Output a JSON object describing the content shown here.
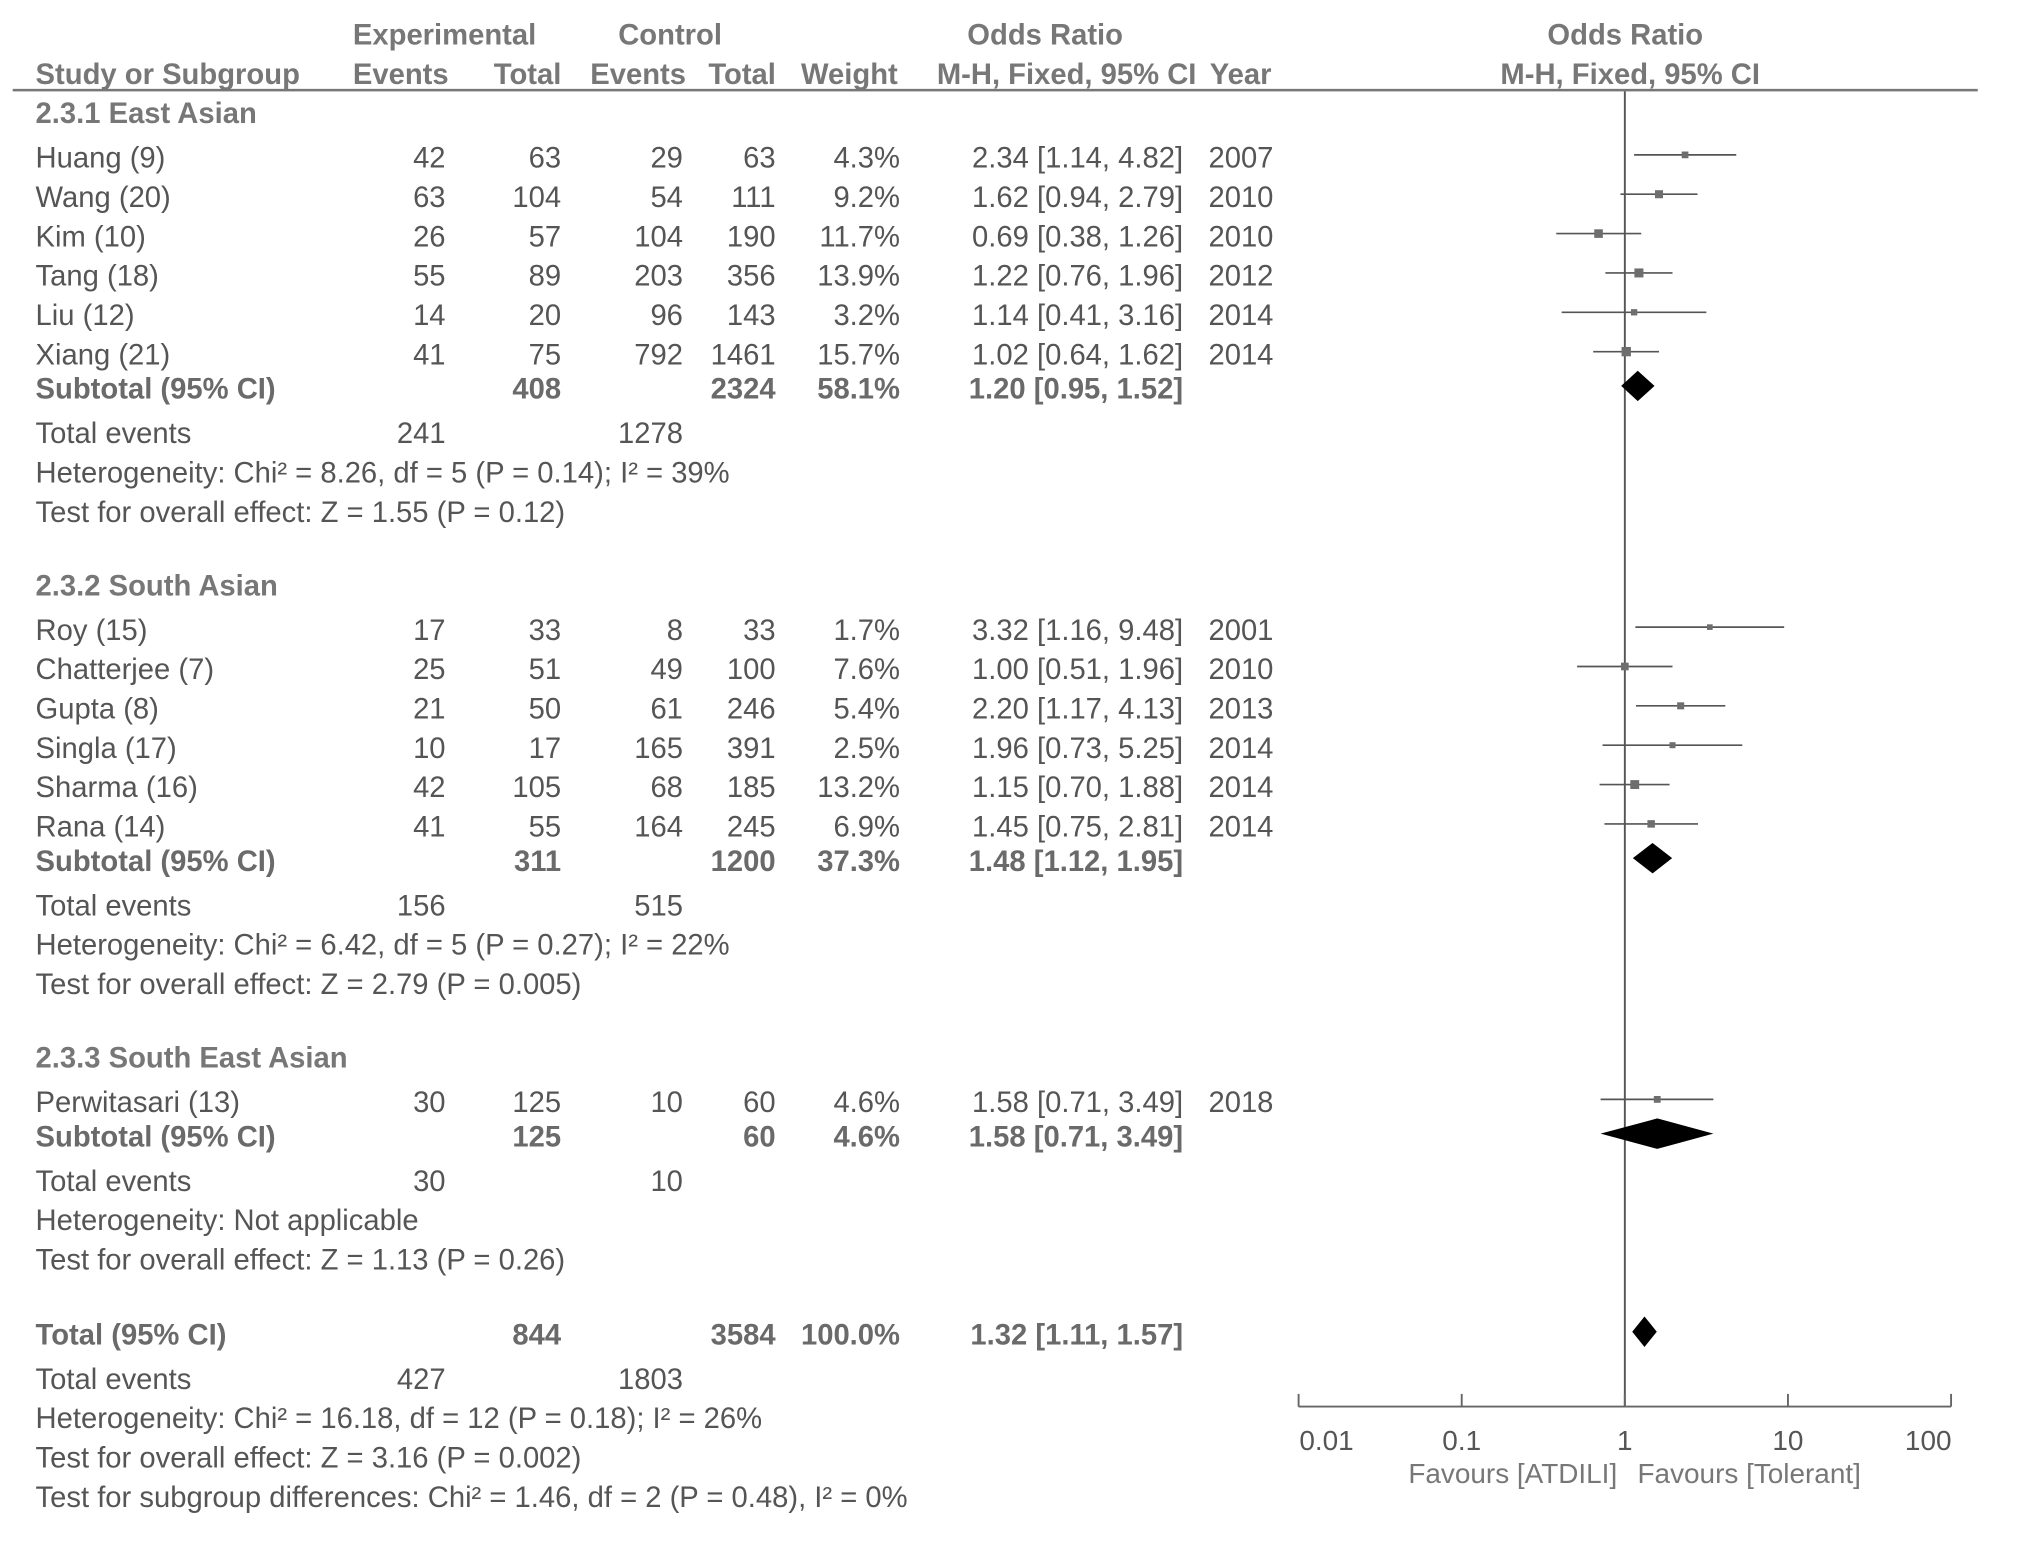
{
  "header": {
    "study": "Study or Subgroup",
    "experimental": "Experimental",
    "control": "Control",
    "events": "Events",
    "total": "Total",
    "weight": "Weight",
    "or_title": "Odds Ratio",
    "or_method": "M-H, Fixed, 95% CI",
    "year": "Year",
    "plot_title": "Odds Ratio",
    "plot_method": "M-H, Fixed, 95% CI"
  },
  "groups": [
    {
      "title": "2.3.1 East Asian",
      "studies": [
        {
          "name": "Huang (9)",
          "e_events": "42",
          "e_total": "63",
          "c_events": "29",
          "c_total": "63",
          "weight": "4.3%",
          "ci": "2.34 [1.14, 4.82]",
          "year": "2007"
        },
        {
          "name": "Wang (20)",
          "e_events": "63",
          "e_total": "104",
          "c_events": "54",
          "c_total": "111",
          "weight": "9.2%",
          "ci": "1.62 [0.94, 2.79]",
          "year": "2010"
        },
        {
          "name": "Kim (10)",
          "e_events": "26",
          "e_total": "57",
          "c_events": "104",
          "c_total": "190",
          "weight": "11.7%",
          "ci": "0.69 [0.38, 1.26]",
          "year": "2010"
        },
        {
          "name": "Tang (18)",
          "e_events": "55",
          "e_total": "89",
          "c_events": "203",
          "c_total": "356",
          "weight": "13.9%",
          "ci": "1.22 [0.76, 1.96]",
          "year": "2012"
        },
        {
          "name": "Liu (12)",
          "e_events": "14",
          "e_total": "20",
          "c_events": "96",
          "c_total": "143",
          "weight": "3.2%",
          "ci": "1.14 [0.41, 3.16]",
          "year": "2014"
        },
        {
          "name": "Xiang (21)",
          "e_events": "41",
          "e_total": "75",
          "c_events": "792",
          "c_total": "1461",
          "weight": "15.7%",
          "ci": "1.02 [0.64, 1.62]",
          "year": "2014"
        }
      ],
      "subtotal": {
        "label": "Subtotal (95% CI)",
        "e_total": "408",
        "c_total": "2324",
        "weight": "58.1%",
        "ci": "1.20 [0.95, 1.52]"
      },
      "events": {
        "label": "Total events",
        "e": "241",
        "c": "1278"
      },
      "heterogeneity": "Heterogeneity: Chi² = 8.26, df = 5 (P = 0.14); I² = 39%",
      "overall": "Test for overall effect: Z = 1.55 (P = 0.12)"
    },
    {
      "title": "2.3.2 South Asian",
      "studies": [
        {
          "name": "Roy (15)",
          "e_events": "17",
          "e_total": "33",
          "c_events": "8",
          "c_total": "33",
          "weight": "1.7%",
          "ci": "3.32 [1.16, 9.48]",
          "year": "2001"
        },
        {
          "name": "Chatterjee (7)",
          "e_events": "25",
          "e_total": "51",
          "c_events": "49",
          "c_total": "100",
          "weight": "7.6%",
          "ci": "1.00 [0.51, 1.96]",
          "year": "2010"
        },
        {
          "name": "Gupta (8)",
          "e_events": "21",
          "e_total": "50",
          "c_events": "61",
          "c_total": "246",
          "weight": "5.4%",
          "ci": "2.20 [1.17, 4.13]",
          "year": "2013"
        },
        {
          "name": "Singla (17)",
          "e_events": "10",
          "e_total": "17",
          "c_events": "165",
          "c_total": "391",
          "weight": "2.5%",
          "ci": "1.96 [0.73, 5.25]",
          "year": "2014"
        },
        {
          "name": "Sharma (16)",
          "e_events": "42",
          "e_total": "105",
          "c_events": "68",
          "c_total": "185",
          "weight": "13.2%",
          "ci": "1.15 [0.70, 1.88]",
          "year": "2014"
        },
        {
          "name": "Rana (14)",
          "e_events": "41",
          "e_total": "55",
          "c_events": "164",
          "c_total": "245",
          "weight": "6.9%",
          "ci": "1.45 [0.75, 2.81]",
          "year": "2014"
        }
      ],
      "subtotal": {
        "label": "Subtotal (95% CI)",
        "e_total": "311",
        "c_total": "1200",
        "weight": "37.3%",
        "ci": "1.48 [1.12, 1.95]"
      },
      "events": {
        "label": "Total events",
        "e": "156",
        "c": "515"
      },
      "heterogeneity": "Heterogeneity: Chi² = 6.42, df = 5 (P = 0.27); I² = 22%",
      "overall": "Test for overall effect: Z = 2.79 (P = 0.005)"
    },
    {
      "title": "2.3.3 South East Asian",
      "studies": [
        {
          "name": "Perwitasari (13)",
          "e_events": "30",
          "e_total": "125",
          "c_events": "10",
          "c_total": "60",
          "weight": "4.6%",
          "ci": "1.58 [0.71, 3.49]",
          "year": "2018"
        }
      ],
      "subtotal": {
        "label": "Subtotal (95% CI)",
        "e_total": "125",
        "c_total": "60",
        "weight": "4.6%",
        "ci": "1.58 [0.71, 3.49]"
      },
      "events": {
        "label": "Total events",
        "e": "30",
        "c": "10"
      },
      "heterogeneity": "Heterogeneity: Not applicable",
      "overall": "Test for overall effect: Z = 1.13 (P = 0.26)"
    }
  ],
  "total": {
    "label": "Total (95% CI)",
    "e_total": "844",
    "c_total": "3584",
    "weight": "100.0%",
    "ci": "1.32 [1.11, 1.57]",
    "events_label": "Total events",
    "e_events": "427",
    "c_events": "1803",
    "heterogeneity": "Heterogeneity: Chi² = 16.18, df = 12 (P = 0.18); I² = 26%",
    "overall": "Test for overall effect: Z = 3.16 (P = 0.002)",
    "subgroup": "Test for subgroup differences: Chi² = 1.46, df = 2 (P = 0.48), I² = 0%"
  },
  "chart_data": {
    "type": "forest",
    "x_scale": "log",
    "xlim": [
      0.01,
      100
    ],
    "ticks": [
      "0.01",
      "0.1",
      "1",
      "10",
      "100"
    ],
    "tick_values": [
      0.01,
      0.1,
      1,
      10,
      100
    ],
    "reference_line": 1,
    "favours_left": "Favours [ATDILI]",
    "favours_right": "Favours [Tolerant]",
    "studies": [
      {
        "name": "Huang (9)",
        "or": 2.34,
        "lo": 1.14,
        "hi": 4.82,
        "weight": 4.3
      },
      {
        "name": "Wang (20)",
        "or": 1.62,
        "lo": 0.94,
        "hi": 2.79,
        "weight": 9.2
      },
      {
        "name": "Kim (10)",
        "or": 0.69,
        "lo": 0.38,
        "hi": 1.26,
        "weight": 11.7
      },
      {
        "name": "Tang (18)",
        "or": 1.22,
        "lo": 0.76,
        "hi": 1.96,
        "weight": 13.9
      },
      {
        "name": "Liu (12)",
        "or": 1.14,
        "lo": 0.41,
        "hi": 3.16,
        "weight": 3.2
      },
      {
        "name": "Xiang (21)",
        "or": 1.02,
        "lo": 0.64,
        "hi": 1.62,
        "weight": 15.7
      },
      {
        "name": "Roy (15)",
        "or": 3.32,
        "lo": 1.16,
        "hi": 9.48,
        "weight": 1.7
      },
      {
        "name": "Chatterjee (7)",
        "or": 1.0,
        "lo": 0.51,
        "hi": 1.96,
        "weight": 7.6
      },
      {
        "name": "Gupta (8)",
        "or": 2.2,
        "lo": 1.17,
        "hi": 4.13,
        "weight": 5.4
      },
      {
        "name": "Singla (17)",
        "or": 1.96,
        "lo": 0.73,
        "hi": 5.25,
        "weight": 2.5
      },
      {
        "name": "Sharma (16)",
        "or": 1.15,
        "lo": 0.7,
        "hi": 1.88,
        "weight": 13.2
      },
      {
        "name": "Rana (14)",
        "or": 1.45,
        "lo": 0.75,
        "hi": 2.81,
        "weight": 6.9
      },
      {
        "name": "Perwitasari (13)",
        "or": 1.58,
        "lo": 0.71,
        "hi": 3.49,
        "weight": 4.6
      }
    ],
    "diamonds": [
      {
        "name": "Subtotal 2.3.1 East Asian",
        "or": 1.2,
        "lo": 0.95,
        "hi": 1.52
      },
      {
        "name": "Subtotal 2.3.2 South Asian",
        "or": 1.48,
        "lo": 1.12,
        "hi": 1.95
      },
      {
        "name": "Subtotal 2.3.3 South East Asian",
        "or": 1.58,
        "lo": 0.71,
        "hi": 3.49
      },
      {
        "name": "Total (95% CI)",
        "or": 1.32,
        "lo": 1.11,
        "hi": 1.57
      }
    ],
    "colors": {
      "text": "#555555",
      "line": "#777777",
      "marker": "#000000"
    }
  }
}
